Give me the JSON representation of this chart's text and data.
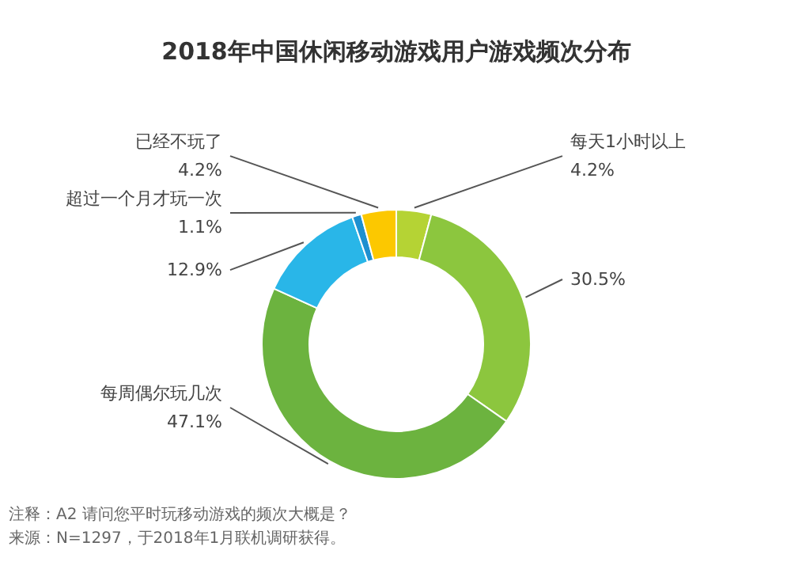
{
  "chart_data": {
    "type": "donut",
    "title": "2018年中国休闲移动游戏用户游戏频次分布",
    "categories": [
      "每天1小时以上",
      null,
      "每周偶尔玩几次",
      null,
      "超过一个月才玩一次",
      "已经不玩了"
    ],
    "values": [
      4.2,
      30.5,
      47.1,
      12.9,
      1.1,
      4.2
    ],
    "value_labels": [
      "4.2%",
      "30.5%",
      "47.1%",
      "12.9%",
      "1.1%",
      "4.2%"
    ],
    "colors": [
      "#b5d334",
      "#8cc63e",
      "#6cb33f",
      "#29b6e8",
      "#1e90d0",
      "#fcc800"
    ],
    "annotations": [
      "注释：A2 请问您平时玩移动游戏的频次大概是？",
      "来源：N=1297，于2018年1月联机调研获得。"
    ]
  }
}
